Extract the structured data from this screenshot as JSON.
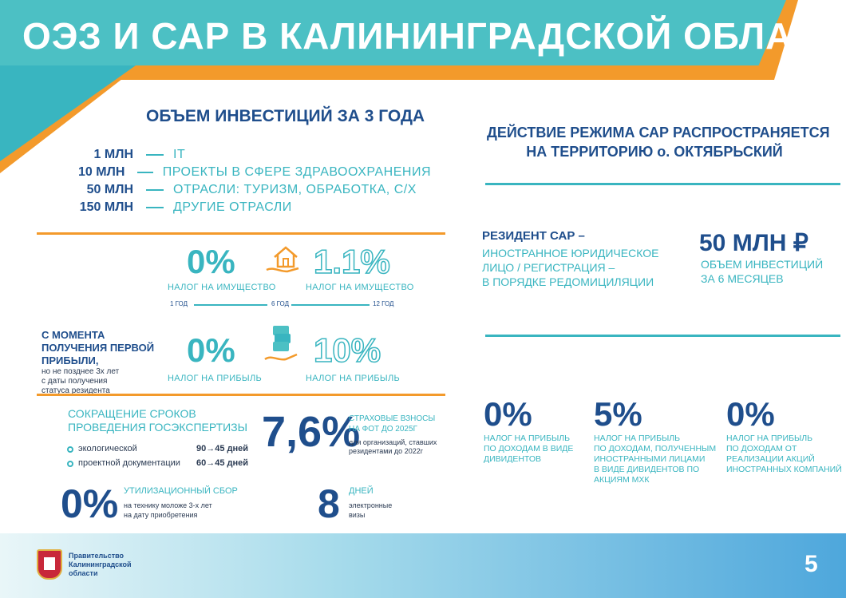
{
  "header": {
    "title": "ОЭЗ И САР В КАЛИНИНГРАДСКОЙ ОБЛАСТИ"
  },
  "investment": {
    "title": "ОБЪЕМ ИНВЕСТИЦИЙ ЗА 3 ГОДА",
    "rows": [
      {
        "amount": "1 МЛН",
        "text": "IT"
      },
      {
        "amount": "10 МЛН",
        "text": "ПРОЕКТЫ В СФЕРЕ ЗДРАВООХРАНЕНИЯ"
      },
      {
        "amount": "50 МЛН",
        "text": "ОТРАСЛИ: ТУРИЗМ, ОБРАБОТКА, С/Х"
      },
      {
        "amount": "150 МЛН",
        "text": "ДРУГИЕ ОТРАСЛИ"
      }
    ]
  },
  "property_tax": {
    "left_value": "0%",
    "left_label": "НАЛОГ НА ИМУЩЕСТВО",
    "right_value": "1.1%",
    "right_label": "НАЛОГ НА ИМУЩЕСТВО",
    "timeline": [
      "1 ГОД",
      "6 ГОД",
      "12 ГОД"
    ]
  },
  "profit_tax": {
    "note_bold": "С МОМЕНТА ПОЛУЧЕНИЯ ПЕРВОЙ ПРИБЫЛИ,",
    "note_line1": "но не позднее 3х лет",
    "note_line2": "с даты получения",
    "note_line3": "статуса резидента",
    "left_value": "0%",
    "left_label": "НАЛОГ НА ПРИБЫЛЬ",
    "right_value": "10%",
    "right_label": "НАЛОГ НА ПРИБЫЛЬ"
  },
  "expertise": {
    "title_line1": "СОКРАЩЕНИЕ СРОКОВ",
    "title_line2": "ПРОВЕДЕНИЯ ГОСЭКСПЕРТИЗЫ",
    "items": [
      {
        "label": "экологической",
        "value": "90→45 дней"
      },
      {
        "label": "проектной документации",
        "value": "60→45 дней"
      }
    ]
  },
  "insurance": {
    "value": "7,6%",
    "title_line1": "СТРАХОВЫЕ ВЗНОСЫ",
    "title_line2": "НА ФОТ ДО 2025Г",
    "note_line1": "для организаций, ставших",
    "note_line2": "резидентами до 2022г"
  },
  "recycling": {
    "value": "0%",
    "title": "УТИЛИЗАЦИОННЫЙ СБОР",
    "note_line1": "на технику моложе 3-х лет",
    "note_line2": "на дату приобретения"
  },
  "visa": {
    "value": "8",
    "title": "ДНЕЙ",
    "note_line1": "электронные",
    "note_line2": "визы"
  },
  "sar": {
    "title_line1": "ДЕЙСТВИЕ РЕЖИМА САР РАСПРОСТРАНЯЕТСЯ",
    "title_line2": "НА ТЕРРИТОРИЮ о. ОКТЯБРЬСКИЙ",
    "resident_title": "РЕЗИДЕНТ САР –",
    "resident_line1": "ИНОСТРАННОЕ ЮРИДИЧЕСКОЕ",
    "resident_line2": "ЛИЦО / РЕГИСТРАЦИЯ  –",
    "resident_line3": "В ПОРЯДКЕ РЕДОМИЦИЛЯЦИИ",
    "invest_value": "50 МЛН ₽",
    "invest_line1": "ОБЪЕМ ИНВЕСТИЦИЙ",
    "invest_line2": "ЗА 6 МЕСЯЦЕВ",
    "taxes": [
      {
        "value": "0%",
        "lines": [
          "НАЛОГ НА ПРИБЫЛЬ",
          "ПО ДОХОДАМ В ВИДЕ",
          "ДИВИДЕНТОВ"
        ]
      },
      {
        "value": "5%",
        "lines": [
          "НАЛОГ НА ПРИБЫЛЬ",
          "ПО ДОХОДАМ, ПОЛУЧЕННЫМ",
          "ИНОСТРАННЫМИ ЛИЦАМИ",
          "В ВИДЕ ДИВИДЕНТОВ ПО",
          "АКЦИЯМ МХК"
        ]
      },
      {
        "value": "0%",
        "lines": [
          "НАЛОГ НА ПРИБЫЛЬ",
          "ПО ДОХОДАМ ОТ",
          "РЕАЛИЗАЦИИ АКЦИЙ",
          "ИНОСТРАННЫХ КОМПАНИЙ"
        ]
      }
    ]
  },
  "footer": {
    "gov_line1": "Правительство",
    "gov_line2": "Калининградской",
    "gov_line3": "области",
    "page_number": "5"
  },
  "colors": {
    "teal": "#39b5c0",
    "orange": "#f39a2b",
    "navy": "#1f4e8c"
  },
  "icons": [
    "house-hand-icon",
    "money-hand-icon",
    "coat-of-arms-icon"
  ]
}
